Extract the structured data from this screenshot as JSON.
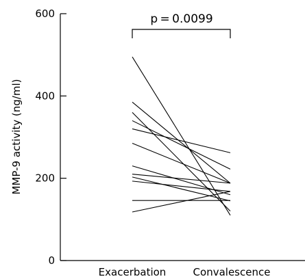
{
  "chart_data": {
    "type": "line",
    "title": "",
    "xlabel": "",
    "ylabel": "MMP-9 activity (ng/ml)",
    "categories": [
      "Exacerbation",
      "Convalescence"
    ],
    "ylim": [
      0,
      600
    ],
    "yticks": [
      0,
      200,
      400,
      600
    ],
    "ytick_labels": [
      "0",
      "200",
      "400",
      "600"
    ],
    "grid": false,
    "legend": "none",
    "annotation": "p = 0.0099",
    "pairs": [
      [
        495,
        110
      ],
      [
        385,
        188
      ],
      [
        360,
        120
      ],
      [
        340,
        222
      ],
      [
        320,
        262
      ],
      [
        285,
        188
      ],
      [
        230,
        160
      ],
      [
        210,
        188
      ],
      [
        203,
        145
      ],
      [
        193,
        168
      ],
      [
        146,
        146
      ],
      [
        118,
        168
      ]
    ]
  }
}
